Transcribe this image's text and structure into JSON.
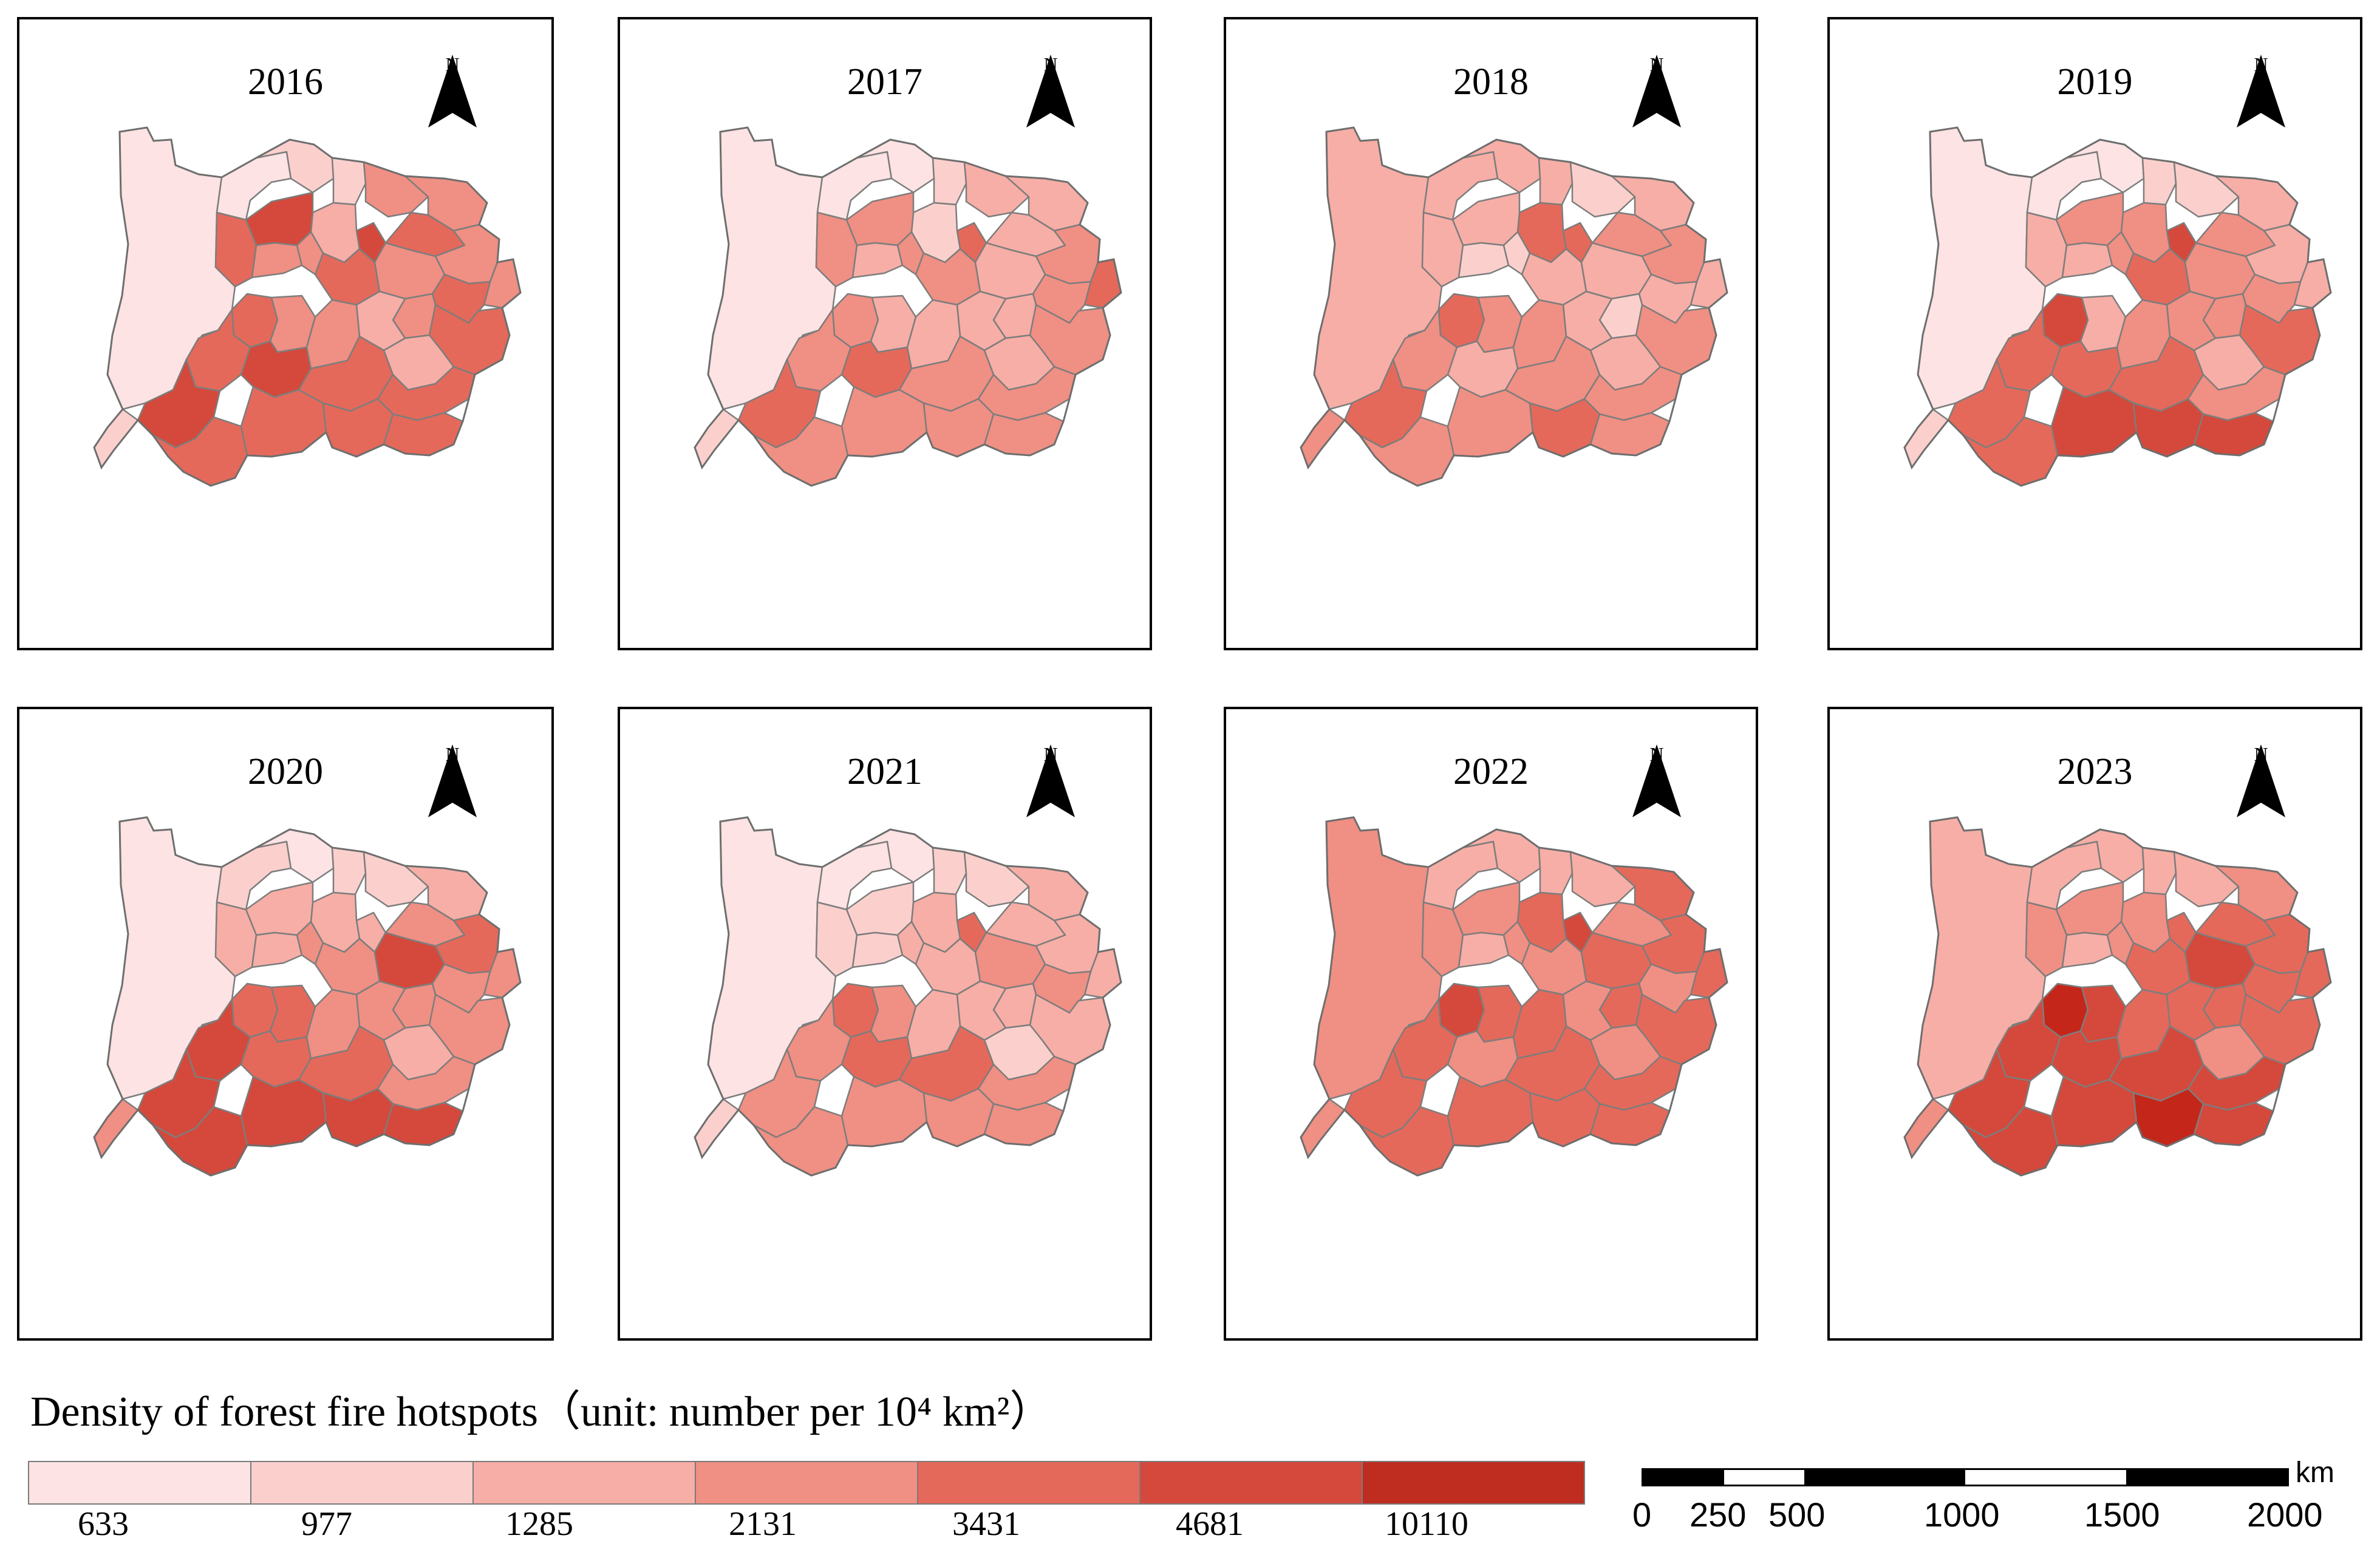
{
  "maps": [
    {
      "year": "2016",
      "north": "N",
      "classes": [
        0,
        0,
        1,
        1,
        3,
        3,
        5,
        2,
        5,
        4,
        3,
        3,
        4,
        3,
        4,
        3,
        3,
        4,
        3,
        2,
        4,
        4,
        4,
        5,
        3,
        5,
        3,
        4,
        2,
        4,
        1,
        4,
        4,
        4,
        4
      ]
    },
    {
      "year": "2017",
      "north": "N",
      "classes": [
        0,
        0,
        0,
        1,
        2,
        2,
        4,
        1,
        3,
        3,
        2,
        3,
        3,
        2,
        2,
        3,
        4,
        3,
        2,
        2,
        3,
        3,
        3,
        4,
        2,
        4,
        2,
        3,
        2,
        3,
        1,
        3,
        3,
        3,
        3
      ]
    },
    {
      "year": "2018",
      "north": "N",
      "classes": [
        2,
        2,
        2,
        2,
        1,
        2,
        4,
        4,
        2,
        2,
        1,
        1,
        2,
        2,
        3,
        3,
        2,
        2,
        1,
        2,
        3,
        4,
        3,
        4,
        3,
        2,
        3,
        3,
        2,
        3,
        3,
        3,
        3,
        4,
        3
      ]
    },
    {
      "year": "2019",
      "north": "N",
      "classes": [
        0,
        0,
        0,
        1,
        1,
        2,
        5,
        3,
        3,
        2,
        2,
        3,
        4,
        3,
        3,
        2,
        2,
        3,
        3,
        3,
        4,
        5,
        4,
        4,
        2,
        4,
        3,
        4,
        2,
        3,
        1,
        4,
        5,
        5,
        5
      ]
    },
    {
      "year": "2020",
      "north": "N",
      "classes": [
        0,
        1,
        0,
        1,
        1,
        2,
        2,
        2,
        2,
        2,
        2,
        3,
        3,
        5,
        3,
        4,
        3,
        3,
        3,
        3,
        3,
        4,
        5,
        5,
        4,
        4,
        3,
        4,
        2,
        3,
        3,
        5,
        5,
        5,
        5
      ]
    },
    {
      "year": "2021",
      "north": "N",
      "classes": [
        0,
        0,
        0,
        1,
        1,
        2,
        4,
        2,
        1,
        1,
        1,
        2,
        2,
        3,
        2,
        2,
        2,
        3,
        2,
        2,
        2,
        4,
        3,
        3,
        3,
        4,
        2,
        4,
        1,
        3,
        1,
        3,
        3,
        3,
        3
      ]
    },
    {
      "year": "2022",
      "north": "N",
      "classes": [
        3,
        2,
        2,
        2,
        2,
        4,
        5,
        4,
        3,
        3,
        2,
        3,
        3,
        4,
        3,
        4,
        4,
        3,
        4,
        3,
        4,
        5,
        4,
        4,
        4,
        3,
        4,
        4,
        3,
        4,
        3,
        4,
        4,
        4,
        4
      ]
    },
    {
      "year": "2023",
      "north": "N",
      "classes": [
        2,
        2,
        2,
        2,
        2,
        3,
        4,
        3,
        3,
        3,
        2,
        3,
        4,
        5,
        4,
        4,
        4,
        4,
        4,
        4,
        4,
        6,
        5,
        5,
        5,
        5,
        4,
        5,
        3,
        5,
        3,
        5,
        5,
        6,
        5
      ]
    }
  ],
  "legend": {
    "title": "Density of forest fire hotspots（unit: number per 10⁴ km²）",
    "labels": [
      "633",
      "977",
      "1285",
      "2131",
      "3431",
      "4681",
      "10110"
    ],
    "colors": [
      "#fde3e3",
      "#fbd0cc",
      "#f7aea6",
      "#f08f83",
      "#e4695a",
      "#d4493b",
      "#bf2c20"
    ]
  },
  "region_colors": [
    "#fde3e3",
    "#fbd0cc",
    "#f7aea6",
    "#f08f83",
    "#e4695a",
    "#d4493b",
    "#c5261a"
  ],
  "scale": {
    "unit": "km",
    "labels": [
      "0",
      "250",
      "500",
      "1000",
      "1500",
      "2000"
    ]
  }
}
